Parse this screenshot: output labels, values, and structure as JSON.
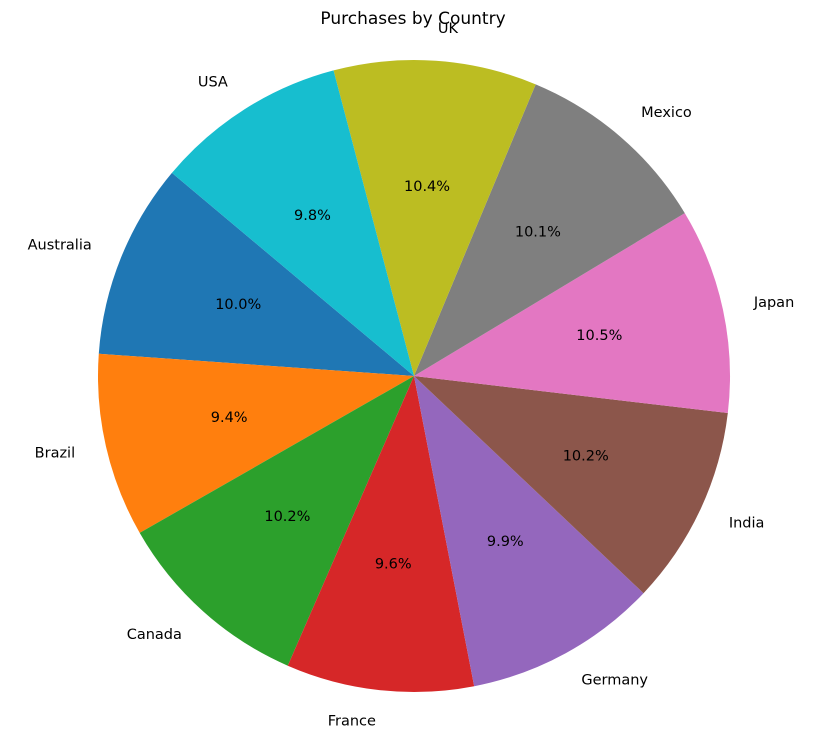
{
  "chart_data": {
    "type": "pie",
    "title": "Purchases by Country",
    "categories": [
      "Australia",
      "Brazil",
      "Canada",
      "France",
      "Germany",
      "India",
      "Japan",
      "Mexico",
      "UK",
      "USA"
    ],
    "values": [
      10.0,
      9.4,
      10.2,
      9.6,
      9.9,
      10.2,
      10.5,
      10.1,
      10.4,
      9.8
    ],
    "value_labels": [
      "10.0%",
      "9.4%",
      "10.2%",
      "9.6%",
      "9.9%",
      "10.2%",
      "10.5%",
      "10.1%",
      "10.4%",
      "9.8%"
    ],
    "colors": [
      "#1f77b4",
      "#ff7f0e",
      "#2ca02c",
      "#d62728",
      "#9467bd",
      "#8c564b",
      "#e377c2",
      "#7f7f7f",
      "#bcbd22",
      "#17becf"
    ],
    "start_angle_degrees": 140,
    "direction": "counterclockwise",
    "legend": "none"
  }
}
